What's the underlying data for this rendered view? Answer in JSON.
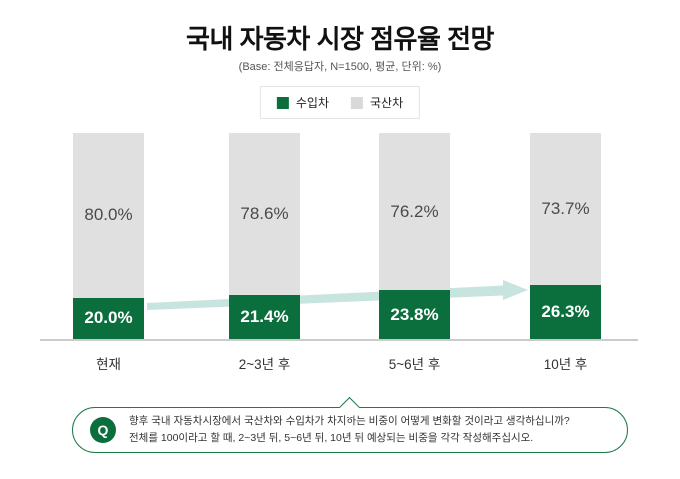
{
  "title": "국내 자동차 시장 점유율 전망",
  "subtitle": "(Base: 전체응답자, N=1500, 평균, 단위: %)",
  "legend": {
    "items": [
      {
        "label": "수입차",
        "color": "#0b6e3d"
      },
      {
        "label": "국산차",
        "color": "#d9d9d9"
      }
    ]
  },
  "chart_data": {
    "type": "bar",
    "stacked": true,
    "orientation": "vertical",
    "categories": [
      "현재",
      "2~3년 후",
      "5~6년 후",
      "10년 후"
    ],
    "series": [
      {
        "name": "수입차",
        "color": "#0b6e3d",
        "values": [
          20.0,
          21.4,
          23.8,
          26.3
        ]
      },
      {
        "name": "국산차",
        "color": "#e0e0e0",
        "values": [
          80.0,
          78.6,
          76.2,
          73.7
        ]
      }
    ],
    "value_suffix": "%",
    "value_decimals": 1,
    "ylim": [
      0,
      100
    ],
    "grid": false,
    "legend_position": "top",
    "annotations": [
      {
        "type": "trend-arrow",
        "description": "rising arrow from 현재 green segment to 10년 후 green segment",
        "color": "#c3e2dc"
      }
    ]
  },
  "question": {
    "q_label": "Q",
    "line1": "향후 국내 자동차시장에서 국산차와 수입차가 차지하는 비중이 어떻게 변화할 것이라고 생각하십니까?",
    "line2": "전체를 100이라고 할 때, 2~3년 뒤, 5~6년 뒤, 10년 뒤 예상되는 비중을 각각 작성해주십시오."
  },
  "colors": {
    "imported_green": "#0b6e3d",
    "domestic_gray": "#e0e0e0",
    "arrow_teal": "#c3e2dc",
    "question_border_green": "#1e7a48",
    "baseline_gray": "#cbcbcb"
  }
}
